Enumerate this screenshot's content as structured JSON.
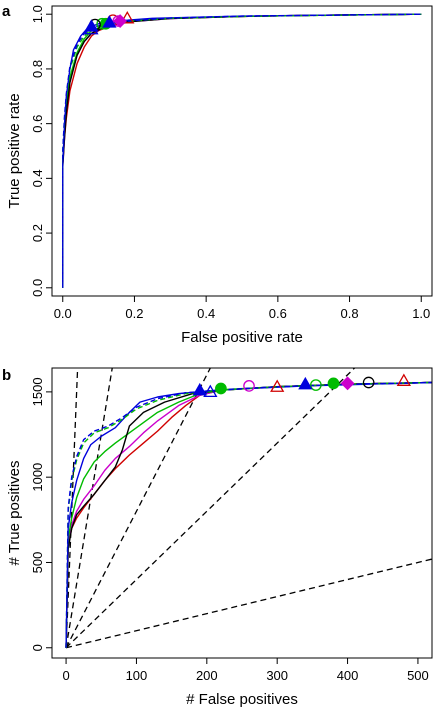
{
  "chart_data": [
    {
      "panel_label": "a",
      "type": "line",
      "xlabel": "False positive rate",
      "ylabel": "True positive rate",
      "xlim": [
        -0.03,
        1.03
      ],
      "ylim": [
        -0.03,
        1.03
      ],
      "xticks": [
        "0.0",
        "0.2",
        "0.4",
        "0.6",
        "0.8",
        "1.0"
      ],
      "yticks": [
        "0.0",
        "0.2",
        "0.4",
        "0.6",
        "0.8",
        "1.0"
      ],
      "series": [
        {
          "color": "#d00000",
          "dash": false,
          "points": [
            [
              0,
              0
            ],
            [
              0,
              0.45
            ],
            [
              0.005,
              0.55
            ],
            [
              0.01,
              0.62
            ],
            [
              0.02,
              0.72
            ],
            [
              0.04,
              0.82
            ],
            [
              0.06,
              0.88
            ],
            [
              0.08,
              0.92
            ],
            [
              0.1,
              0.94
            ],
            [
              0.14,
              0.96
            ],
            [
              0.2,
              0.975
            ],
            [
              0.3,
              0.985
            ],
            [
              0.5,
              0.992
            ],
            [
              0.7,
              0.996
            ],
            [
              1,
              1
            ]
          ]
        },
        {
          "color": "#cc00cc",
          "dash": false,
          "points": [
            [
              0,
              0
            ],
            [
              0,
              0.45
            ],
            [
              0.005,
              0.57
            ],
            [
              0.01,
              0.65
            ],
            [
              0.02,
              0.76
            ],
            [
              0.04,
              0.85
            ],
            [
              0.06,
              0.9
            ],
            [
              0.08,
              0.93
            ],
            [
              0.12,
              0.955
            ],
            [
              0.18,
              0.972
            ],
            [
              0.3,
              0.984
            ],
            [
              0.5,
              0.992
            ],
            [
              0.7,
              0.996
            ],
            [
              1,
              1
            ]
          ]
        },
        {
          "color": "#00bb00",
          "dash": false,
          "points": [
            [
              0,
              0
            ],
            [
              0,
              0.46
            ],
            [
              0.005,
              0.58
            ],
            [
              0.01,
              0.66
            ],
            [
              0.02,
              0.77
            ],
            [
              0.04,
              0.86
            ],
            [
              0.06,
              0.91
            ],
            [
              0.08,
              0.94
            ],
            [
              0.12,
              0.96
            ],
            [
              0.18,
              0.974
            ],
            [
              0.3,
              0.985
            ],
            [
              0.5,
              0.992
            ],
            [
              0.7,
              0.996
            ],
            [
              1,
              1
            ]
          ]
        },
        {
          "color": "#000000",
          "dash": false,
          "points": [
            [
              0,
              0
            ],
            [
              0,
              0.44
            ],
            [
              0.005,
              0.55
            ],
            [
              0.01,
              0.64
            ],
            [
              0.02,
              0.75
            ],
            [
              0.04,
              0.85
            ],
            [
              0.06,
              0.9
            ],
            [
              0.08,
              0.93
            ],
            [
              0.12,
              0.955
            ],
            [
              0.18,
              0.972
            ],
            [
              0.3,
              0.984
            ],
            [
              0.5,
              0.992
            ],
            [
              0.7,
              0.996
            ],
            [
              1,
              1
            ]
          ]
        },
        {
          "color": "#0000dd",
          "dash": false,
          "points": [
            [
              0,
              0
            ],
            [
              0,
              0.45
            ],
            [
              0.005,
              0.6
            ],
            [
              0.01,
              0.7
            ],
            [
              0.02,
              0.8
            ],
            [
              0.03,
              0.87
            ],
            [
              0.05,
              0.92
            ],
            [
              0.07,
              0.95
            ],
            [
              0.1,
              0.965
            ],
            [
              0.15,
              0.975
            ],
            [
              0.25,
              0.985
            ],
            [
              0.5,
              0.993
            ],
            [
              0.7,
              0.996
            ],
            [
              1,
              1
            ]
          ]
        },
        {
          "color": "#00bb00",
          "dash": true,
          "points": [
            [
              0,
              0
            ],
            [
              0,
              0.5
            ],
            [
              0.005,
              0.62
            ],
            [
              0.01,
              0.7
            ],
            [
              0.02,
              0.8
            ],
            [
              0.04,
              0.88
            ],
            [
              0.06,
              0.92
            ],
            [
              0.08,
              0.945
            ],
            [
              0.12,
              0.962
            ],
            [
              0.2,
              0.976
            ],
            [
              0.3,
              0.985
            ],
            [
              0.5,
              0.992
            ],
            [
              1,
              1
            ]
          ]
        },
        {
          "color": "#0000dd",
          "dash": true,
          "points": [
            [
              0,
              0
            ],
            [
              0,
              0.5
            ],
            [
              0.005,
              0.63
            ],
            [
              0.01,
              0.71
            ],
            [
              0.02,
              0.81
            ],
            [
              0.04,
              0.89
            ],
            [
              0.06,
              0.93
            ],
            [
              0.08,
              0.95
            ],
            [
              0.12,
              0.965
            ],
            [
              0.2,
              0.977
            ],
            [
              0.3,
              0.986
            ],
            [
              0.5,
              0.993
            ],
            [
              1,
              1
            ]
          ]
        }
      ],
      "markers": [
        {
          "x": 0.18,
          "y": 0.985,
          "shape": "triangle",
          "filled": false,
          "color": "#d00000"
        },
        {
          "x": 0.14,
          "y": 0.978,
          "shape": "circle",
          "filled": false,
          "color": "#d00000"
        },
        {
          "x": 0.155,
          "y": 0.975,
          "shape": "circle",
          "filled": false,
          "color": "#cc00cc"
        },
        {
          "x": 0.16,
          "y": 0.975,
          "shape": "diamond",
          "filled": true,
          "color": "#cc00cc"
        },
        {
          "x": 0.12,
          "y": 0.965,
          "shape": "circle",
          "filled": true,
          "color": "#00bb00"
        },
        {
          "x": 0.11,
          "y": 0.965,
          "shape": "circle",
          "filled": false,
          "color": "#00bb00"
        },
        {
          "x": 0.09,
          "y": 0.962,
          "shape": "circle",
          "filled": false,
          "color": "#000000"
        },
        {
          "x": 0.08,
          "y": 0.945,
          "shape": "triangle",
          "filled": false,
          "color": "#0000dd"
        },
        {
          "x": 0.13,
          "y": 0.97,
          "shape": "triangle",
          "filled": true,
          "color": "#0000dd"
        },
        {
          "x": 0.08,
          "y": 0.955,
          "shape": "triangle",
          "filled": true,
          "color": "#0000dd"
        }
      ]
    },
    {
      "panel_label": "b",
      "type": "line",
      "xlabel": "# False positives",
      "ylabel": "# True positives",
      "xlim": [
        -20,
        520
      ],
      "ylim": [
        -60,
        1640
      ],
      "xticks": [
        "0",
        "100",
        "200",
        "300",
        "400",
        "500"
      ],
      "yticks": [
        "0",
        "500",
        "1000",
        "1500"
      ],
      "reference_lines_slope": [
        100,
        25,
        8,
        4,
        1
      ],
      "series": [
        {
          "color": "#d00000",
          "dash": false,
          "points": [
            [
              0,
              0
            ],
            [
              3,
              600
            ],
            [
              8,
              700
            ],
            [
              15,
              760
            ],
            [
              25,
              820
            ],
            [
              40,
              900
            ],
            [
              55,
              980
            ],
            [
              70,
              1050
            ],
            [
              90,
              1130
            ],
            [
              110,
              1200
            ],
            [
              130,
              1270
            ],
            [
              150,
              1350
            ],
            [
              170,
              1420
            ],
            [
              190,
              1480
            ],
            [
              220,
              1510
            ],
            [
              300,
              1530
            ],
            [
              400,
              1545
            ],
            [
              520,
              1555
            ]
          ]
        },
        {
          "color": "#cc00cc",
          "dash": false,
          "points": [
            [
              0,
              0
            ],
            [
              3,
              620
            ],
            [
              8,
              720
            ],
            [
              15,
              800
            ],
            [
              25,
              870
            ],
            [
              40,
              950
            ],
            [
              55,
              1040
            ],
            [
              70,
              1110
            ],
            [
              90,
              1180
            ],
            [
              110,
              1260
            ],
            [
              130,
              1330
            ],
            [
              160,
              1420
            ],
            [
              190,
              1480
            ],
            [
              220,
              1510
            ],
            [
              300,
              1530
            ],
            [
              400,
              1545
            ],
            [
              520,
              1555
            ]
          ]
        },
        {
          "color": "#00bb00",
          "dash": false,
          "points": [
            [
              0,
              0
            ],
            [
              3,
              640
            ],
            [
              8,
              760
            ],
            [
              15,
              880
            ],
            [
              25,
              990
            ],
            [
              40,
              1090
            ],
            [
              55,
              1150
            ],
            [
              70,
              1200
            ],
            [
              90,
              1260
            ],
            [
              110,
              1320
            ],
            [
              130,
              1380
            ],
            [
              160,
              1440
            ],
            [
              190,
              1490
            ],
            [
              230,
              1515
            ],
            [
              300,
              1530
            ],
            [
              400,
              1545
            ],
            [
              520,
              1555
            ]
          ]
        },
        {
          "color": "#000000",
          "dash": false,
          "points": [
            [
              0,
              0
            ],
            [
              3,
              580
            ],
            [
              8,
              700
            ],
            [
              15,
              780
            ],
            [
              25,
              830
            ],
            [
              40,
              900
            ],
            [
              55,
              980
            ],
            [
              70,
              1060
            ],
            [
              80,
              1160
            ],
            [
              90,
              1300
            ],
            [
              110,
              1380
            ],
            [
              140,
              1440
            ],
            [
              180,
              1490
            ],
            [
              220,
              1510
            ],
            [
              300,
              1530
            ],
            [
              400,
              1545
            ],
            [
              520,
              1555
            ]
          ]
        },
        {
          "color": "#0000dd",
          "dash": false,
          "points": [
            [
              0,
              0
            ],
            [
              3,
              700
            ],
            [
              8,
              850
            ],
            [
              15,
              980
            ],
            [
              25,
              1110
            ],
            [
              35,
              1190
            ],
            [
              50,
              1240
            ],
            [
              70,
              1290
            ],
            [
              90,
              1380
            ],
            [
              105,
              1440
            ],
            [
              130,
              1470
            ],
            [
              160,
              1490
            ],
            [
              200,
              1505
            ],
            [
              260,
              1520
            ],
            [
              340,
              1535
            ],
            [
              430,
              1545
            ],
            [
              520,
              1555
            ]
          ]
        },
        {
          "color": "#00bb00",
          "dash": true,
          "points": [
            [
              0,
              0
            ],
            [
              3,
              800
            ],
            [
              8,
              980
            ],
            [
              15,
              1100
            ],
            [
              25,
              1200
            ],
            [
              40,
              1260
            ],
            [
              60,
              1290
            ],
            [
              80,
              1340
            ],
            [
              100,
              1400
            ],
            [
              130,
              1450
            ],
            [
              170,
              1490
            ],
            [
              220,
              1510
            ],
            [
              300,
              1530
            ],
            [
              400,
              1545
            ],
            [
              520,
              1555
            ]
          ]
        },
        {
          "color": "#0000dd",
          "dash": true,
          "points": [
            [
              0,
              0
            ],
            [
              3,
              820
            ],
            [
              8,
              1000
            ],
            [
              15,
              1120
            ],
            [
              25,
              1220
            ],
            [
              40,
              1270
            ],
            [
              60,
              1300
            ],
            [
              80,
              1350
            ],
            [
              100,
              1410
            ],
            [
              130,
              1460
            ],
            [
              170,
              1495
            ],
            [
              220,
              1512
            ],
            [
              300,
              1530
            ],
            [
              400,
              1545
            ],
            [
              520,
              1555
            ]
          ]
        }
      ],
      "markers": [
        {
          "x": 480,
          "y": 1565,
          "shape": "triangle",
          "filled": false,
          "color": "#d00000"
        },
        {
          "x": 430,
          "y": 1555,
          "shape": "circle",
          "filled": false,
          "color": "#000000"
        },
        {
          "x": 400,
          "y": 1550,
          "shape": "diamond",
          "filled": true,
          "color": "#cc00cc"
        },
        {
          "x": 380,
          "y": 1550,
          "shape": "circle",
          "filled": true,
          "color": "#00bb00"
        },
        {
          "x": 355,
          "y": 1540,
          "shape": "circle",
          "filled": false,
          "color": "#00bb00"
        },
        {
          "x": 340,
          "y": 1545,
          "shape": "triangle",
          "filled": true,
          "color": "#0000dd"
        },
        {
          "x": 300,
          "y": 1530,
          "shape": "triangle",
          "filled": false,
          "color": "#d00000"
        },
        {
          "x": 260,
          "y": 1535,
          "shape": "circle",
          "filled": false,
          "color": "#cc00cc"
        },
        {
          "x": 220,
          "y": 1520,
          "shape": "circle",
          "filled": true,
          "color": "#00bb00"
        },
        {
          "x": 205,
          "y": 1500,
          "shape": "triangle",
          "filled": false,
          "color": "#0000dd"
        },
        {
          "x": 190,
          "y": 1510,
          "shape": "triangle",
          "filled": true,
          "color": "#0000dd"
        }
      ]
    }
  ]
}
